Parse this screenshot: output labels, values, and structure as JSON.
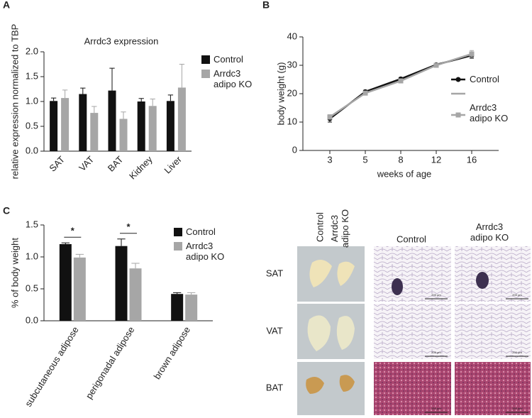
{
  "panel_labels": [
    "A",
    "B",
    "C"
  ],
  "chart_data": [
    {
      "type": "bar",
      "title": "Arrdc3 expression",
      "ylabel": "relative expression normalized to TBP",
      "categories": [
        "SAT",
        "VAT",
        "BAT",
        "Kidney",
        "Liver"
      ],
      "series": [
        {
          "name": "Control",
          "color": "#111111",
          "values": [
            1.01,
            1.15,
            1.22,
            1.0,
            1.01
          ],
          "errors": [
            0.06,
            0.12,
            0.45,
            0.06,
            0.12
          ]
        },
        {
          "name": "Arrdc3 adipo KO",
          "color": "#a6a6a6",
          "values": [
            1.07,
            0.77,
            0.65,
            0.91,
            1.28
          ],
          "errors": [
            0.16,
            0.13,
            0.14,
            0.14,
            0.47
          ]
        }
      ],
      "ylim": [
        0,
        2
      ],
      "yticks": [
        {
          "value": 0,
          "label": "0.0"
        },
        {
          "value": 0.5,
          "label": "0.5"
        },
        {
          "value": 1,
          "label": "1.0"
        },
        {
          "value": 1.5,
          "label": "1.5"
        },
        {
          "value": 2,
          "label": "2.0"
        }
      ],
      "legend": "right"
    },
    {
      "type": "line",
      "ylabel": "body weight (g)",
      "xlabel": "weeks of age",
      "categories": [
        "3",
        "5",
        "8",
        "12",
        "16"
      ],
      "series": [
        {
          "name": "Control",
          "color": "#111111",
          "values": [
            11.2,
            20.7,
            25.2,
            30.2,
            33.5
          ],
          "errors": [
            1.2,
            0.5,
            0.5,
            0.4,
            1.0
          ]
        },
        {
          "name": "Arrdc3 adipo KO",
          "color": "#a6a6a6",
          "values": [
            11.8,
            20.2,
            24.5,
            30.0,
            34.0
          ],
          "errors": [
            0.8,
            0.5,
            0.6,
            0.5,
            1.2
          ]
        }
      ],
      "ylim": [
        0,
        40
      ],
      "yticks": [
        0,
        10,
        20,
        30,
        40
      ],
      "legend": "right"
    },
    {
      "type": "bar",
      "ylabel": "% of body weight",
      "categories": [
        "subcutaneous adipose",
        "perigonadal adipose",
        "brown adipose"
      ],
      "series": [
        {
          "name": "Control",
          "color": "#111111",
          "values": [
            1.2,
            1.17,
            0.42
          ],
          "errors": [
            0.02,
            0.11,
            0.02
          ]
        },
        {
          "name": "Arrdc3 adipo KO",
          "color": "#a6a6a6",
          "values": [
            0.99,
            0.82,
            0.41
          ],
          "errors": [
            0.05,
            0.08,
            0.03
          ]
        }
      ],
      "significance": [
        "*",
        "*",
        null
      ],
      "ylim": [
        0,
        1.5
      ],
      "yticks": [
        {
          "value": 0,
          "label": "0.0"
        },
        {
          "value": 0.5,
          "label": "0.5"
        },
        {
          "value": 1,
          "label": "1.0"
        },
        {
          "value": 1.5,
          "label": "1.5"
        }
      ],
      "legend": "right"
    }
  ],
  "images": {
    "gross_columns": [
      "Control",
      "Arrdc3 adipo KO"
    ],
    "histology_columns": [
      "Control",
      "Arrdc3 adipo KO"
    ],
    "rows": [
      "SAT",
      "VAT",
      "BAT"
    ],
    "scale_label": "200 µm"
  }
}
